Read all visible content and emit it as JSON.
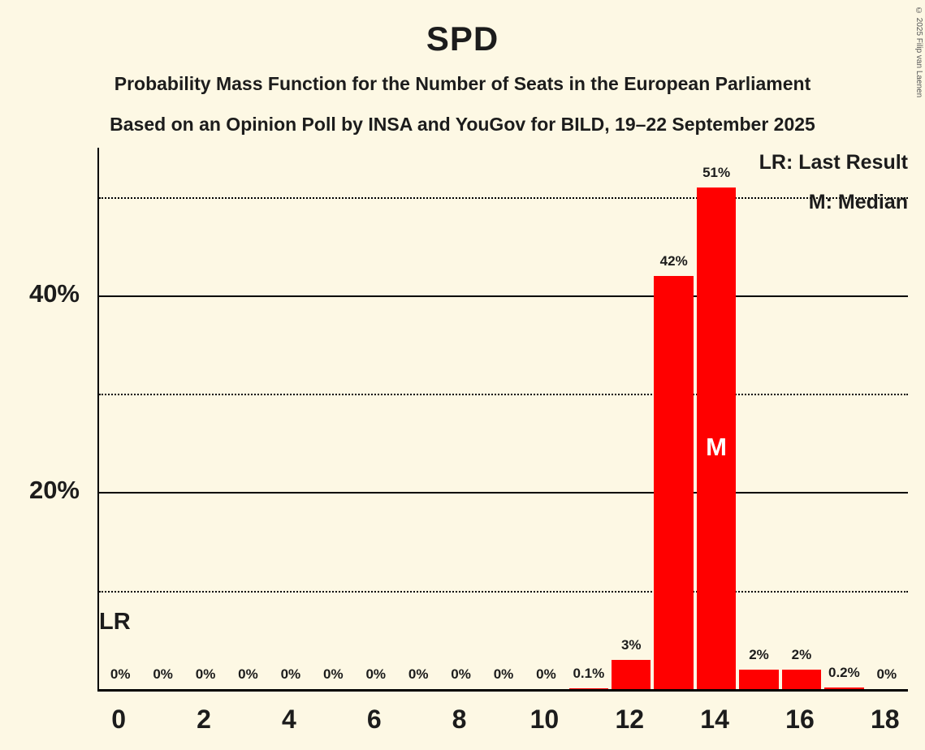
{
  "title": "SPD",
  "subtitle1": "Probability Mass Function for the Number of Seats in the European Parliament",
  "subtitle2": "Based on an Opinion Poll by INSA and YouGov for BILD, 19–22 September 2025",
  "copyright": "© 2025 Filip van Laenen",
  "legend": {
    "lr": "LR: Last Result",
    "m": "M: Median"
  },
  "annotations": {
    "lr_label": "LR",
    "median_label": "M"
  },
  "colors": {
    "background": "#fdf8e4",
    "bar": "#ff0000",
    "text": "#1c1c1c"
  },
  "chart_data": {
    "type": "bar",
    "title": "SPD",
    "x": [
      0,
      1,
      2,
      3,
      4,
      5,
      6,
      7,
      8,
      9,
      10,
      11,
      12,
      13,
      14,
      15,
      16,
      17,
      18
    ],
    "values": [
      0,
      0,
      0,
      0,
      0,
      0,
      0,
      0,
      0,
      0,
      0,
      0.1,
      3,
      42,
      51,
      2,
      2,
      0.2,
      0
    ],
    "labels": [
      "0%",
      "0%",
      "0%",
      "0%",
      "0%",
      "0%",
      "0%",
      "0%",
      "0%",
      "0%",
      "0%",
      "0.1%",
      "3%",
      "42%",
      "51%",
      "2%",
      "2%",
      "0.2%",
      "0%"
    ],
    "ylim": [
      0,
      55
    ],
    "yticks": [
      {
        "value": 20,
        "label": "20%"
      },
      {
        "value": 40,
        "label": "40%"
      }
    ],
    "gridlines": [
      {
        "value": 10,
        "style": "dotted"
      },
      {
        "value": 20,
        "style": "solid"
      },
      {
        "value": 30,
        "style": "dotted"
      },
      {
        "value": 40,
        "style": "solid"
      },
      {
        "value": 50,
        "style": "dotted"
      }
    ],
    "xticks": [
      {
        "value": 0,
        "label": "0"
      },
      {
        "value": 2,
        "label": "2"
      },
      {
        "value": 4,
        "label": "4"
      },
      {
        "value": 6,
        "label": "6"
      },
      {
        "value": 8,
        "label": "8"
      },
      {
        "value": 10,
        "label": "10"
      },
      {
        "value": 12,
        "label": "12"
      },
      {
        "value": 14,
        "label": "14"
      },
      {
        "value": 16,
        "label": "16"
      },
      {
        "value": 18,
        "label": "18"
      }
    ],
    "median_seat": 14,
    "last_result_seat": 0,
    "bar_color": "#ff0000",
    "grid": true,
    "legend_position": "top-right"
  }
}
